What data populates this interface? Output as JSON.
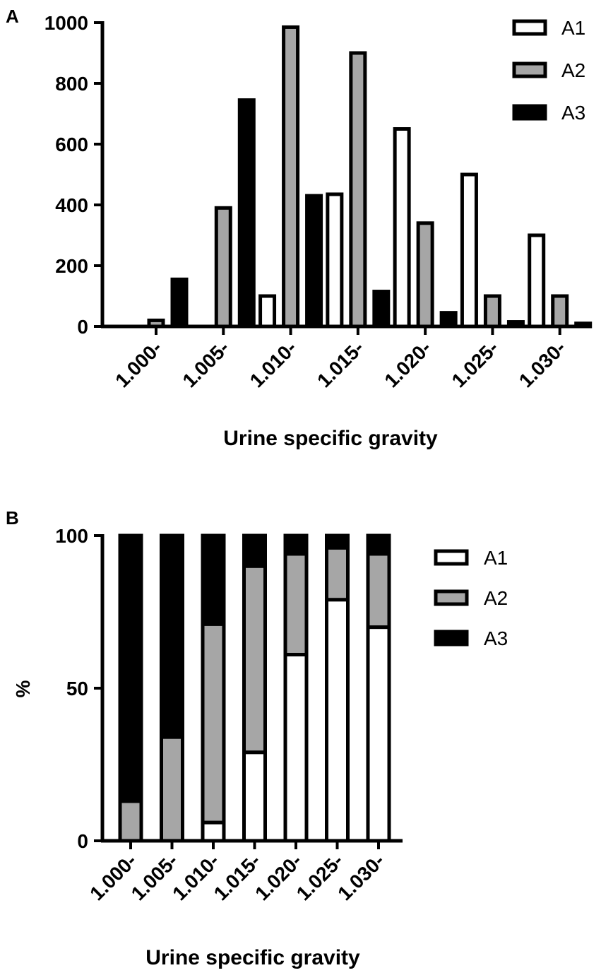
{
  "colors": {
    "A1": "#ffffff",
    "A2": "#a6a6a6",
    "A3": "#000000",
    "stroke": "#000000"
  },
  "chart_data": [
    {
      "panel_label": "A",
      "type": "bar",
      "xlabel": "Urine specific gravity",
      "ylabel": "",
      "ylim": [
        0,
        1000
      ],
      "yticks": [
        0,
        200,
        400,
        600,
        800,
        1000
      ],
      "categories": [
        "1.000-",
        "1.005-",
        "1.010-",
        "1.015-",
        "1.020-",
        "1.025-",
        "1.030-"
      ],
      "legend_position": "top-right",
      "series": [
        {
          "name": "A1",
          "values": [
            0,
            0,
            100,
            435,
            650,
            500,
            300
          ]
        },
        {
          "name": "A2",
          "values": [
            20,
            390,
            985,
            900,
            340,
            100,
            100
          ]
        },
        {
          "name": "A3",
          "values": [
            155,
            745,
            430,
            115,
            45,
            15,
            10
          ]
        }
      ]
    },
    {
      "panel_label": "B",
      "type": "bar",
      "stacked": true,
      "xlabel": "Urine specific gravity",
      "ylabel": "%",
      "ylim": [
        0,
        100
      ],
      "yticks": [
        0,
        50,
        100
      ],
      "categories": [
        "1.000-",
        "1.005-",
        "1.010-",
        "1.015-",
        "1.020-",
        "1.025-",
        "1.030-"
      ],
      "legend_position": "top-right",
      "series": [
        {
          "name": "A1",
          "values": [
            0,
            0,
            6,
            29,
            61,
            79,
            70
          ]
        },
        {
          "name": "A2",
          "values": [
            13,
            34,
            65,
            61,
            33,
            17,
            24
          ]
        },
        {
          "name": "A3",
          "values": [
            87,
            66,
            29,
            10,
            6,
            4,
            6
          ]
        }
      ]
    }
  ]
}
